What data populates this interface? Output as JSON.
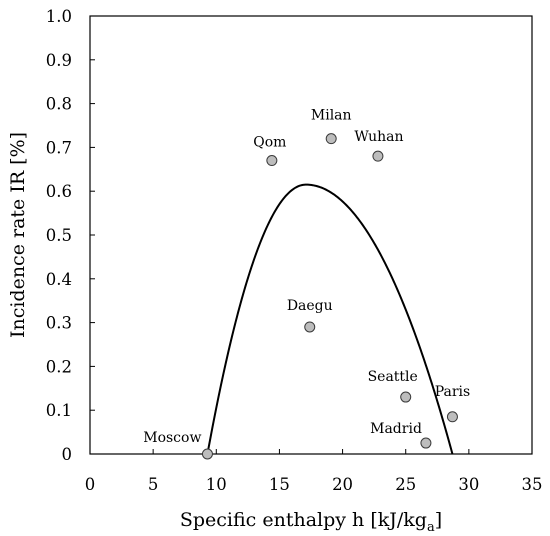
{
  "chart_data": {
    "type": "scatter",
    "xlabel": "Specific enthalpy h [kJ/kg",
    "xlabel_subscript": "a",
    "xlabel_suffix": "]",
    "ylabel": "Incidence rate IR [%]",
    "xlim": [
      0,
      35
    ],
    "ylim": [
      0,
      1.0
    ],
    "x_ticks": [
      0,
      5,
      10,
      15,
      20,
      25,
      30,
      35
    ],
    "y_ticks": [
      0,
      0.1,
      0.2,
      0.3,
      0.4,
      0.5,
      0.6,
      0.7,
      0.8,
      0.9,
      1.0
    ],
    "x_tick_labels": [
      "0",
      "5",
      "10",
      "15",
      "20",
      "25",
      "30",
      "35"
    ],
    "y_tick_labels": [
      "0",
      "0.1",
      "0.2",
      "0.3",
      "0.4",
      "0.5",
      "0.6",
      "0.7",
      "0.8",
      "0.9",
      "1.0"
    ],
    "grid": false,
    "points": [
      {
        "label": "Moscow",
        "x": 9.3,
        "y": 0.0
      },
      {
        "label": "Qom",
        "x": 14.4,
        "y": 0.67
      },
      {
        "label": "Milan",
        "x": 19.1,
        "y": 0.72
      },
      {
        "label": "Wuhan",
        "x": 22.8,
        "y": 0.68
      },
      {
        "label": "Daegu",
        "x": 17.4,
        "y": 0.29
      },
      {
        "label": "Seattle",
        "x": 25.0,
        "y": 0.13
      },
      {
        "label": "Paris",
        "x": 28.7,
        "y": 0.085
      },
      {
        "label": "Madrid",
        "x": 26.6,
        "y": 0.025
      }
    ],
    "fit_curve": {
      "type": "parabola",
      "x_start": 9.3,
      "x_end": 28.7,
      "peak_x": 17.1,
      "peak_y": 0.615
    },
    "colors": {
      "marker_fill": "#bdbdbd",
      "marker_stroke": "#3a3a3a",
      "curve": "#000000",
      "axis": "#000000"
    }
  }
}
